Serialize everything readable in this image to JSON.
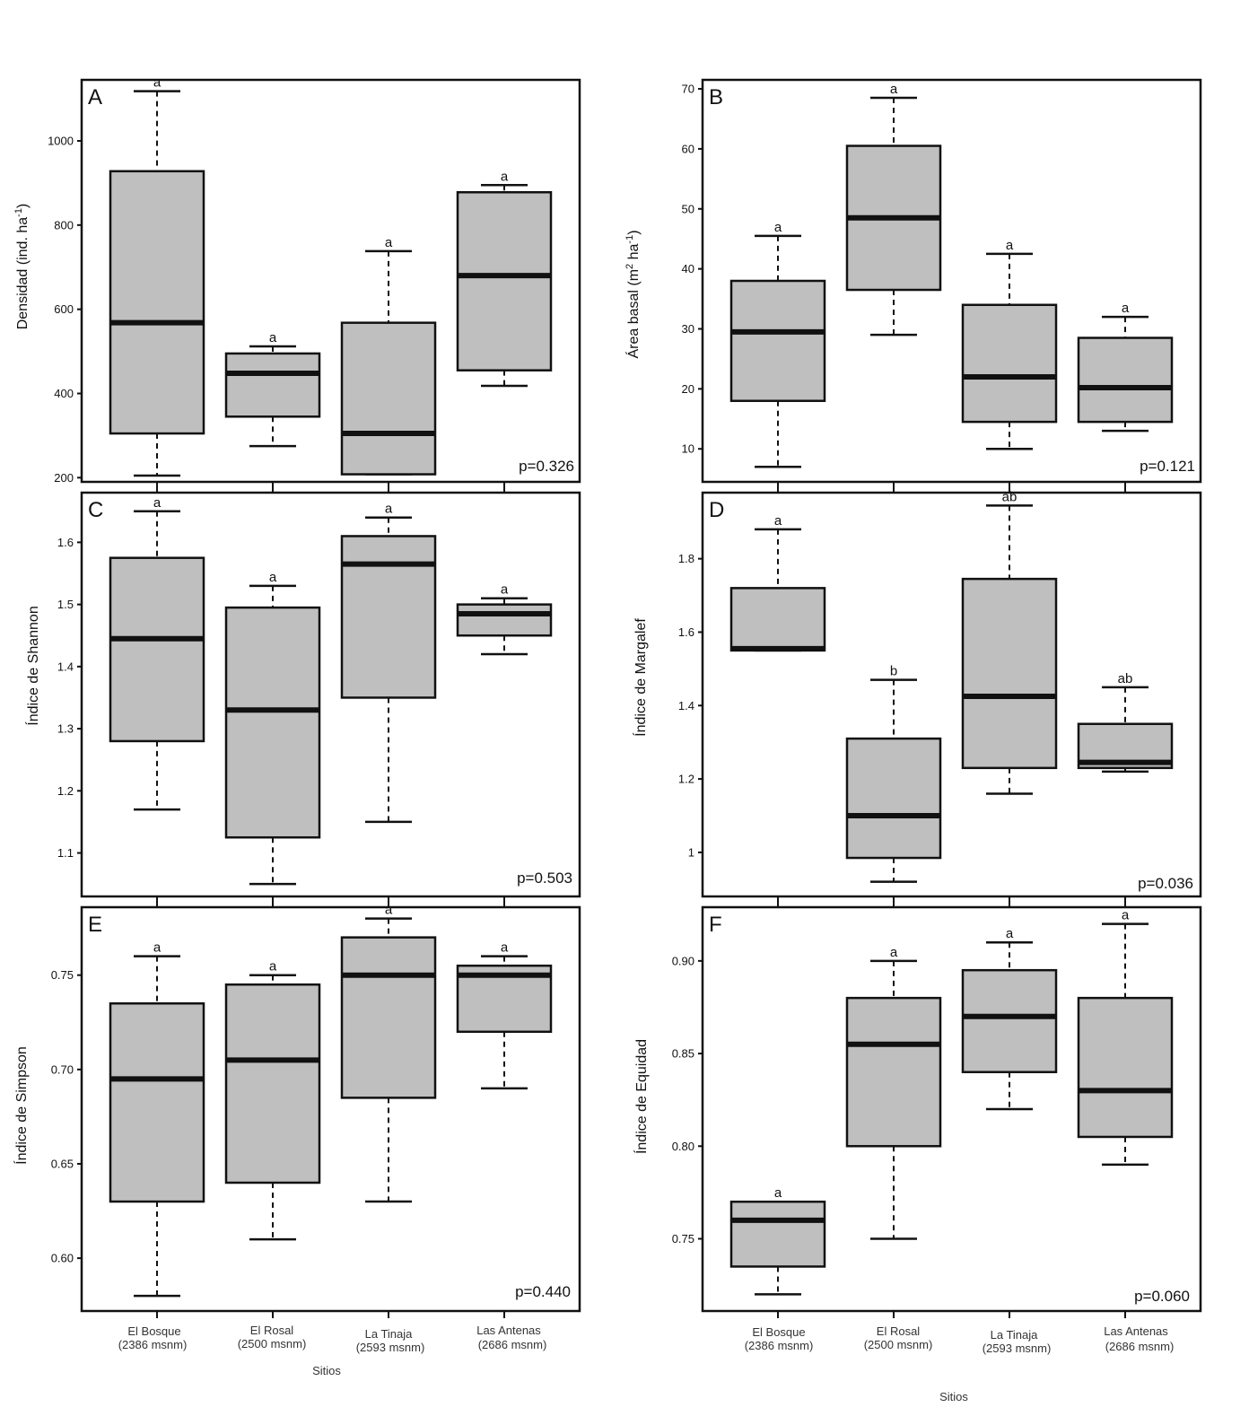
{
  "chart_data": [
    {
      "panel": "A",
      "type": "boxplot",
      "ylabel": "Densidad (ind. ha",
      "ylabel_sup": "-1",
      "ylabel_end": ")",
      "yticks": [
        200,
        400,
        600,
        800,
        1000
      ],
      "ylim": [
        190,
        1145
      ],
      "pvalue": "p=0.326",
      "groups": [
        {
          "min": 205,
          "q1": 305,
          "median": 568,
          "q3": 928,
          "max": 1118,
          "letter": "a"
        },
        {
          "min": 275,
          "q1": 345,
          "median": 448,
          "q3": 495,
          "max": 512,
          "letter": "a"
        },
        {
          "min": 208,
          "q1": 208,
          "median": 305,
          "q3": 568,
          "max": 738,
          "letter": "a"
        },
        {
          "min": 418,
          "q1": 455,
          "median": 680,
          "q3": 878,
          "max": 895,
          "letter": "a"
        }
      ]
    },
    {
      "panel": "B",
      "type": "boxplot",
      "ylabel": "Área basal (m",
      "ylabel_sup": "2",
      "ylabel_mid": " ha",
      "ylabel_sup2": "-1",
      "ylabel_end": ")",
      "yticks": [
        10,
        20,
        30,
        40,
        50,
        60,
        70
      ],
      "ylim": [
        4.5,
        71.5
      ],
      "pvalue": "p=0.121",
      "groups": [
        {
          "min": 7,
          "q1": 18,
          "median": 29.5,
          "q3": 38,
          "max": 45.5,
          "letter": "a"
        },
        {
          "min": 29,
          "q1": 36.5,
          "median": 48.5,
          "q3": 60.5,
          "max": 68.5,
          "letter": "a"
        },
        {
          "min": 10,
          "q1": 14.5,
          "median": 22,
          "q3": 34,
          "max": 42.5,
          "letter": "a"
        },
        {
          "min": 13,
          "q1": 14.5,
          "median": 20.2,
          "q3": 28.5,
          "max": 32,
          "letter": "a"
        }
      ]
    },
    {
      "panel": "C",
      "type": "boxplot",
      "ylabel": "Índice de Shannon",
      "yticks": [
        1.1,
        1.2,
        1.3,
        1.4,
        1.5,
        1.6
      ],
      "ylim": [
        1.03,
        1.68
      ],
      "pvalue": "p=0.503",
      "groups": [
        {
          "min": 1.17,
          "q1": 1.28,
          "median": 1.445,
          "q3": 1.575,
          "max": 1.65,
          "letter": "a"
        },
        {
          "min": 1.05,
          "q1": 1.125,
          "median": 1.33,
          "q3": 1.495,
          "max": 1.53,
          "letter": "a"
        },
        {
          "min": 1.15,
          "q1": 1.35,
          "median": 1.565,
          "q3": 1.61,
          "max": 1.64,
          "letter": "a"
        },
        {
          "min": 1.42,
          "q1": 1.45,
          "median": 1.485,
          "q3": 1.5,
          "max": 1.51,
          "letter": "a"
        }
      ]
    },
    {
      "panel": "D",
      "type": "boxplot",
      "ylabel": "Índice de Margalef",
      "yticks": [
        1.0,
        1.2,
        1.4,
        1.6,
        1.8
      ],
      "ylim": [
        0.88,
        1.98
      ],
      "pvalue": "p=0.036",
      "groups": [
        {
          "min": 1.55,
          "q1": 1.55,
          "median": 1.555,
          "q3": 1.72,
          "max": 1.88,
          "letter": "a"
        },
        {
          "min": 0.92,
          "q1": 0.985,
          "median": 1.1,
          "q3": 1.31,
          "max": 1.47,
          "letter": "b"
        },
        {
          "min": 1.16,
          "q1": 1.23,
          "median": 1.425,
          "q3": 1.745,
          "max": 1.945,
          "letter": "ab"
        },
        {
          "min": 1.22,
          "q1": 1.23,
          "median": 1.245,
          "q3": 1.35,
          "max": 1.45,
          "letter": "ab"
        }
      ]
    },
    {
      "panel": "E",
      "type": "boxplot",
      "ylabel": "Índice de Simpson",
      "yticks": [
        0.6,
        0.65,
        0.7,
        0.75
      ],
      "ylim": [
        0.572,
        0.786
      ],
      "ytick_labels": [
        "0.60",
        "0.65",
        "0.70",
        "0.75"
      ],
      "pvalue": "p=0.440",
      "groups": [
        {
          "min": 0.58,
          "q1": 0.63,
          "median": 0.695,
          "q3": 0.735,
          "max": 0.76,
          "letter": "a"
        },
        {
          "min": 0.61,
          "q1": 0.64,
          "median": 0.705,
          "q3": 0.745,
          "max": 0.75,
          "letter": "a"
        },
        {
          "min": 0.63,
          "q1": 0.685,
          "median": 0.75,
          "q3": 0.77,
          "max": 0.78,
          "letter": "a"
        },
        {
          "min": 0.69,
          "q1": 0.72,
          "median": 0.75,
          "q3": 0.755,
          "max": 0.76,
          "letter": "a"
        }
      ]
    },
    {
      "panel": "F",
      "type": "boxplot",
      "ylabel": "Índice de Equidad",
      "yticks": [
        0.75,
        0.8,
        0.85,
        0.9
      ],
      "ylim": [
        0.711,
        0.929
      ],
      "ytick_labels": [
        "0.75",
        "0.80",
        "0.85",
        "0.90"
      ],
      "pvalue": "p=0.060",
      "groups": [
        {
          "min": 0.72,
          "q1": 0.735,
          "median": 0.76,
          "q3": 0.77,
          "max": 0.77,
          "letter": "a"
        },
        {
          "min": 0.75,
          "q1": 0.8,
          "median": 0.855,
          "q3": 0.88,
          "max": 0.9,
          "letter": "a"
        },
        {
          "min": 0.82,
          "q1": 0.84,
          "median": 0.87,
          "q3": 0.895,
          "max": 0.91,
          "letter": "a"
        },
        {
          "min": 0.79,
          "q1": 0.805,
          "median": 0.83,
          "q3": 0.88,
          "max": 0.92,
          "letter": "a"
        }
      ]
    }
  ],
  "categories": [
    {
      "name": "El Bosque",
      "alt": "(2386 msnm)"
    },
    {
      "name": "El Rosal",
      "alt": "(2500 msnm)"
    },
    {
      "name": "La Tinaja",
      "alt": "(2593 msnm)"
    },
    {
      "name": "Las Antenas",
      "alt": "(2686 msnm)"
    }
  ],
  "xlabel": "Sitios"
}
